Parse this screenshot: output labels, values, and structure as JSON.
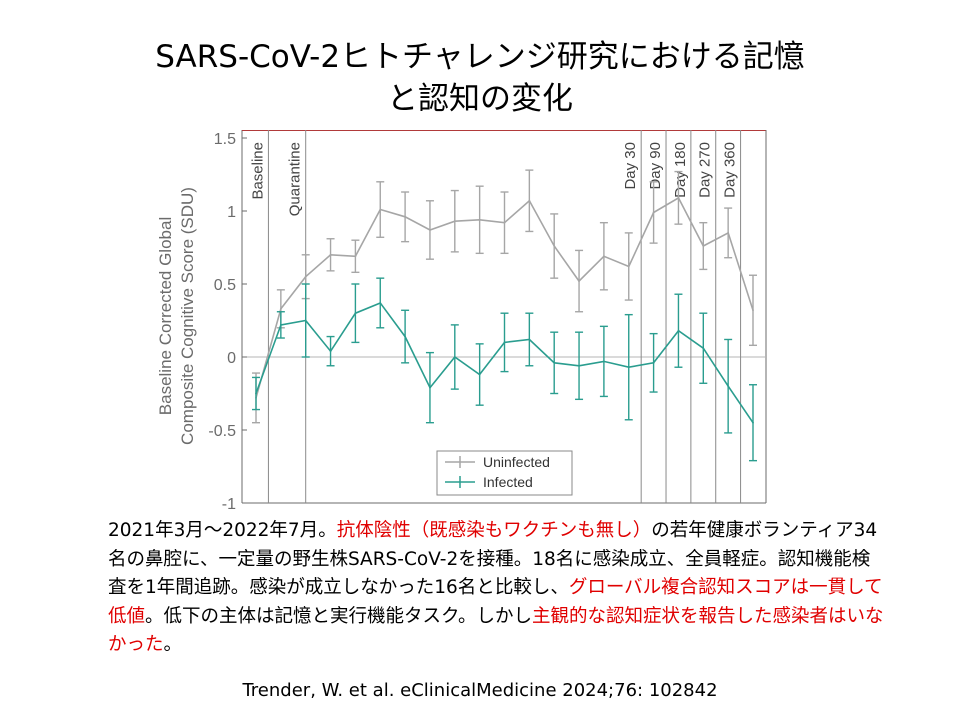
{
  "slide": {
    "title_line1": "SARS-CoV-2ヒトチャレンジ研究における記憶",
    "title_line2": "と認知の変化"
  },
  "chart_data": {
    "type": "line",
    "ylabel_line1": "Baseline Corrected Global",
    "ylabel_line2": "Composite Cognitive Score (SDU)",
    "ylim": [
      -1,
      1.5
    ],
    "yticks": [
      -1,
      -0.5,
      0,
      0.5,
      1,
      1.5
    ],
    "x": [
      1,
      2,
      3,
      4,
      5,
      6,
      7,
      8,
      9,
      10,
      11,
      12,
      13,
      14,
      15,
      16,
      17,
      18,
      19,
      20,
      21
    ],
    "series": [
      {
        "name": "Uninfected",
        "color": "#a6a6a6",
        "values": [
          -0.28,
          0.33,
          0.55,
          0.7,
          0.69,
          1.01,
          0.96,
          0.87,
          0.93,
          0.94,
          0.92,
          1.07,
          0.76,
          0.52,
          0.69,
          0.62,
          0.99,
          1.09,
          0.76,
          0.85,
          0.32
        ],
        "errors": [
          0.17,
          0.13,
          0.15,
          0.11,
          0.11,
          0.19,
          0.17,
          0.2,
          0.21,
          0.23,
          0.21,
          0.21,
          0.22,
          0.21,
          0.23,
          0.23,
          0.21,
          0.18,
          0.16,
          0.17,
          0.24
        ]
      },
      {
        "name": "Infected",
        "color": "#2a9d8f",
        "values": [
          -0.25,
          0.22,
          0.25,
          0.04,
          0.3,
          0.37,
          0.14,
          -0.21,
          0.0,
          -0.12,
          0.1,
          0.12,
          -0.04,
          -0.06,
          -0.03,
          -0.07,
          -0.04,
          0.18,
          0.06,
          -0.2,
          -0.45
        ],
        "errors": [
          0.11,
          0.09,
          0.25,
          0.1,
          0.2,
          0.17,
          0.18,
          0.24,
          0.22,
          0.21,
          0.2,
          0.18,
          0.21,
          0.23,
          0.24,
          0.36,
          0.2,
          0.25,
          0.24,
          0.32,
          0.26
        ]
      }
    ],
    "events": [
      {
        "label": "Baseline",
        "x": 1.5
      },
      {
        "label": "Quarantine",
        "x": 3.0
      },
      {
        "label": "Day 30",
        "x": 16.5
      },
      {
        "label": "Day 90",
        "x": 17.5
      },
      {
        "label": "Day 180",
        "x": 18.5
      },
      {
        "label": "Day 270",
        "x": 19.5
      },
      {
        "label": "Day 360",
        "x": 20.5
      }
    ],
    "legend": {
      "position": "bottom-right",
      "items": [
        "Uninfected",
        "Infected"
      ]
    },
    "grid": false
  },
  "body": {
    "seg1": "2021年3月～2022年7月。",
    "seg2": "抗体陰性（既感染もワクチンも無し）",
    "seg3": "の若年健康ボランティア34名の鼻腔に、一定量の野生株SARS-CoV-2を接種。18名に感染成立、全員軽症。認知機能検査を1年間追跡。感染が成立しなかった16名と比較し、",
    "seg4": "グローバル複合認知スコアは一貫して低値",
    "seg5": "。低下の主体は記憶と実行機能タスク。しかし",
    "seg6": "主観的な認知症状を報告した感染者はいなかった",
    "seg7": "。"
  },
  "citation": "Trender, W. et al.  eClinicalMedicine 2024;76: 102842"
}
